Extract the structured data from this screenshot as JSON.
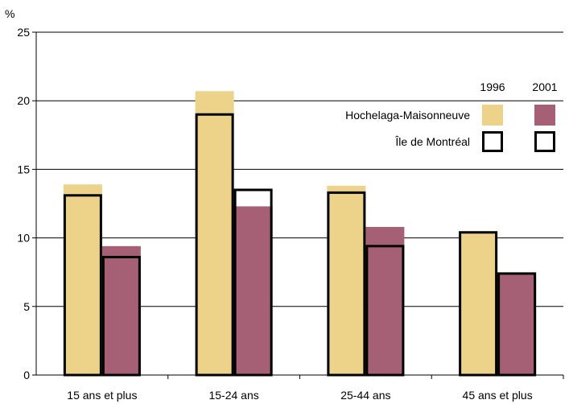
{
  "chart_data": {
    "type": "bar",
    "ylabel": "%",
    "ylim": [
      0,
      25
    ],
    "yticks": [
      0,
      5,
      10,
      15,
      20,
      25
    ],
    "grid": true,
    "categories": [
      "15 ans et plus",
      "15-24 ans",
      "25-44 ans",
      "45 ans et plus"
    ],
    "series": [
      {
        "name": "1996",
        "color": "#edd38a",
        "region": "Hochelaga-Maisonneuve",
        "values": [
          13.9,
          20.7,
          13.8,
          10.5
        ],
        "montreal_values": [
          13.1,
          19.0,
          13.3,
          10.4
        ]
      },
      {
        "name": "2001",
        "color": "#a56075",
        "region": "Hochelaga-Maisonneuve",
        "values": [
          9.4,
          12.3,
          10.8,
          7.4
        ],
        "montreal_values": [
          8.6,
          13.5,
          9.4,
          7.4
        ]
      }
    ],
    "legend": {
      "position": "top-right",
      "year_headers": [
        "1996",
        "2001"
      ],
      "rows": [
        {
          "label": "Hochelaga-Maisonneuve",
          "style": "filled"
        },
        {
          "label": "Île de Montréal",
          "style": "outline"
        }
      ]
    }
  }
}
